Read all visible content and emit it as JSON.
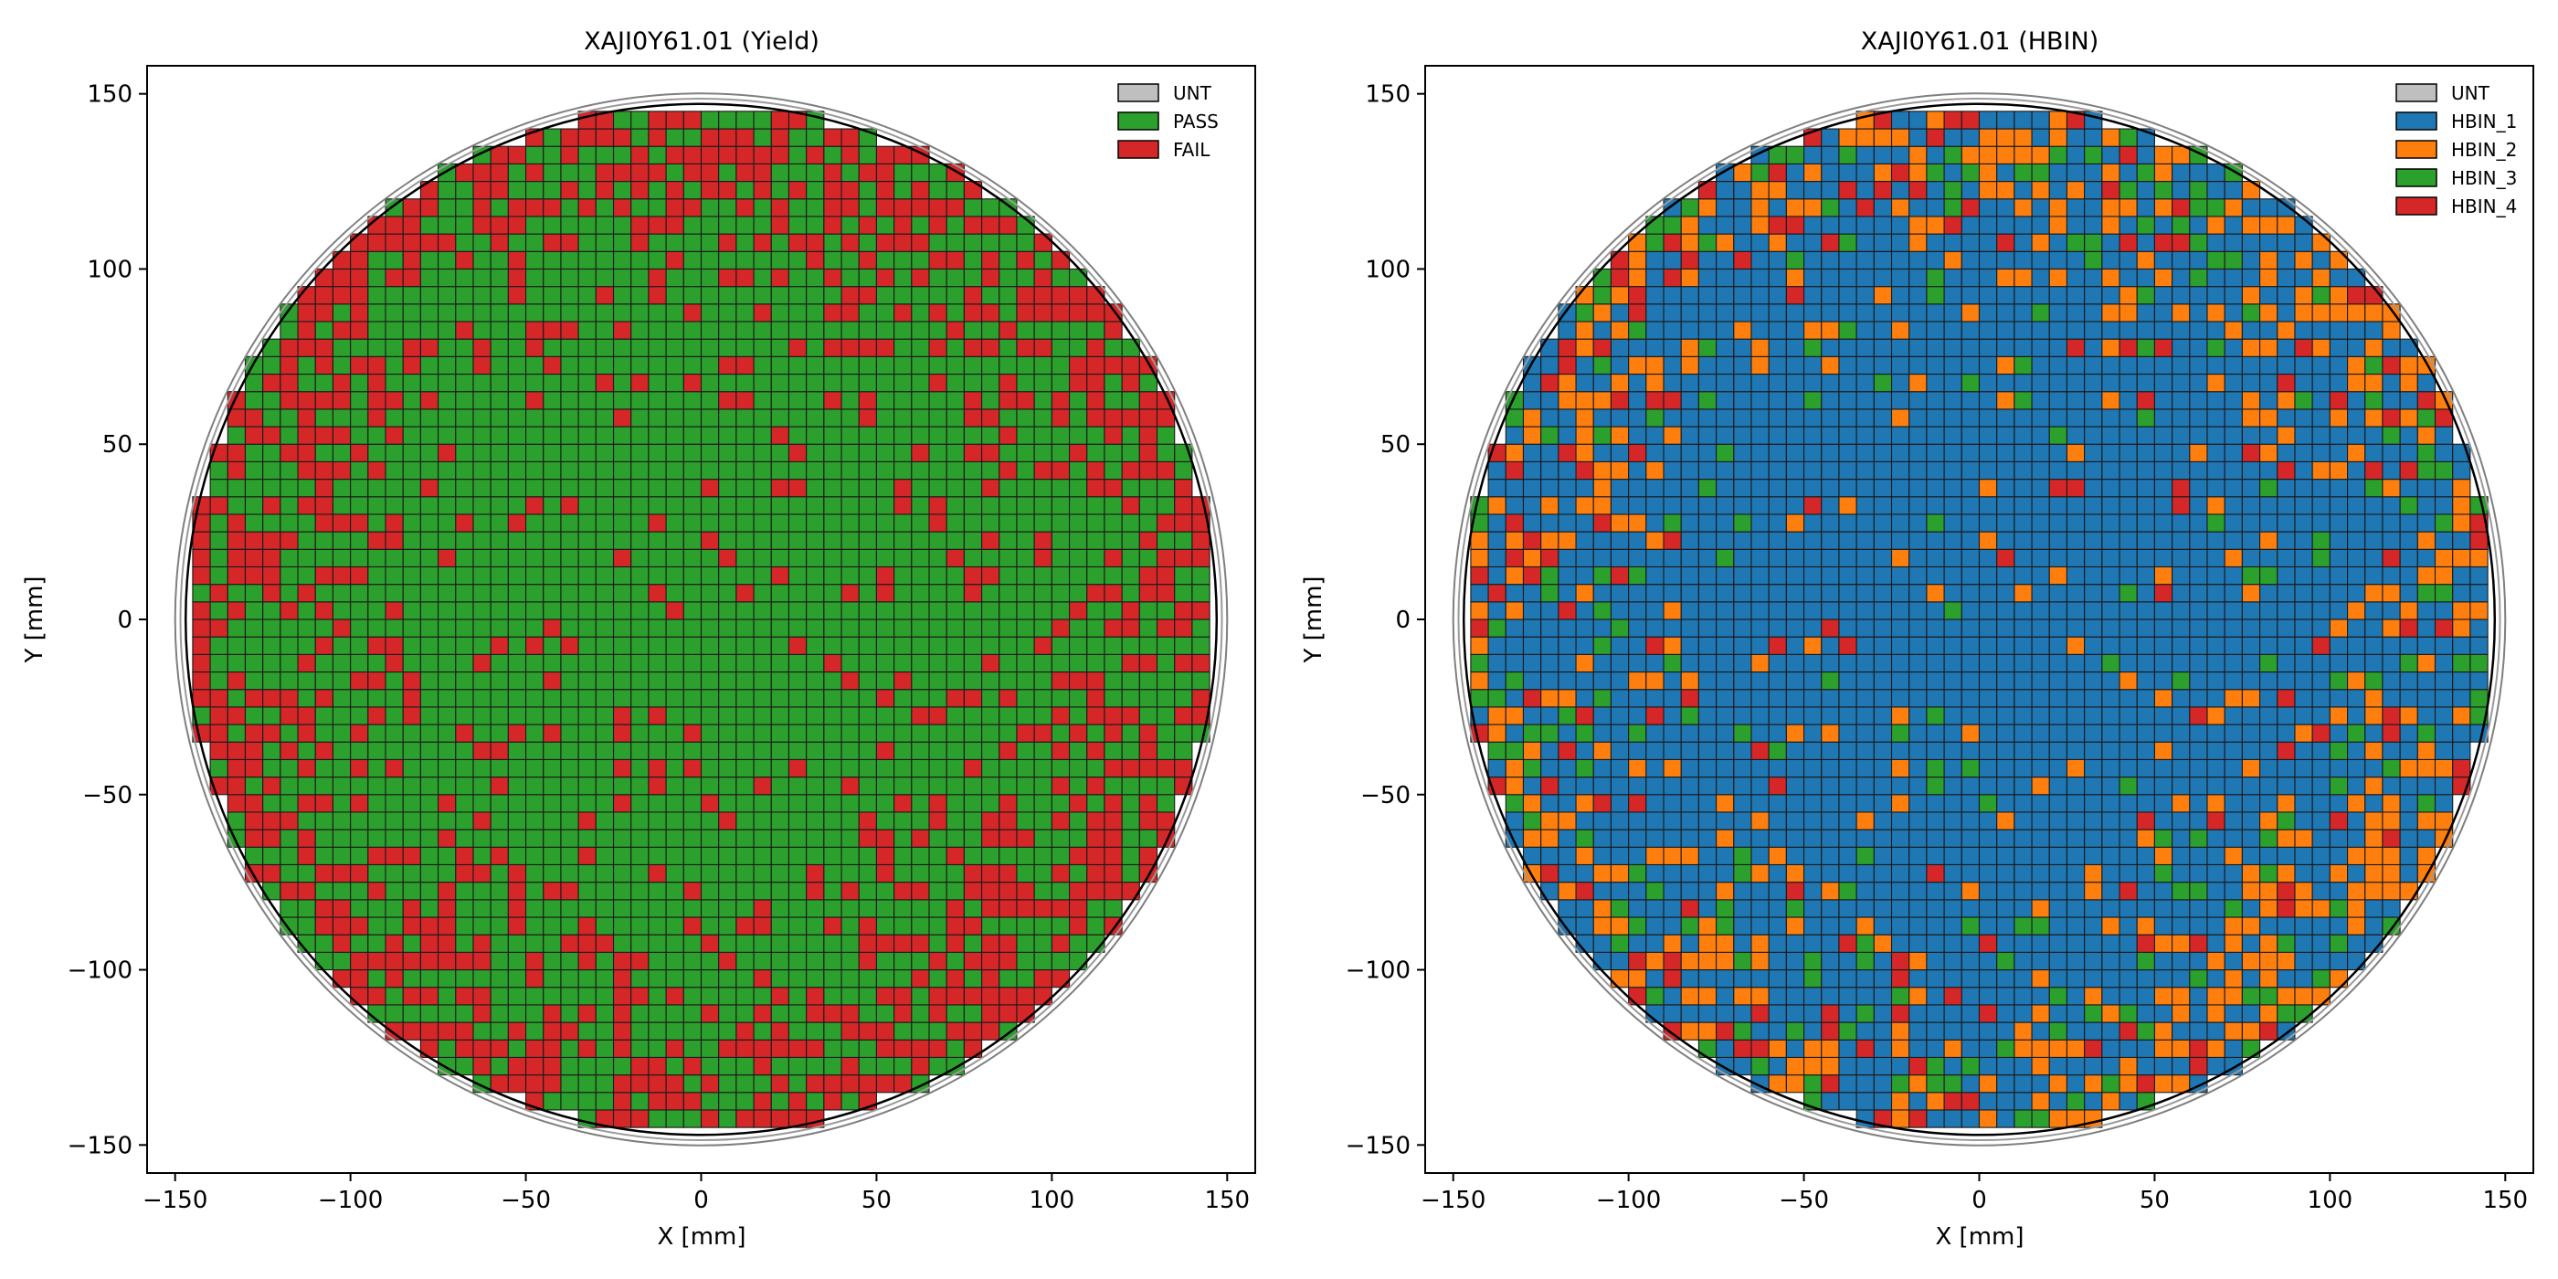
{
  "chart_data": [
    {
      "type": "heatmap",
      "title": "XAJI0Y61.01 (Yield)",
      "xlabel": "X [mm]",
      "ylabel": "Y [mm]",
      "xlim": [
        -158,
        158
      ],
      "ylim": [
        -158,
        158
      ],
      "xticks": [
        -150,
        -100,
        -50,
        0,
        50,
        100,
        150
      ],
      "yticks": [
        -150,
        -100,
        -50,
        0,
        50,
        100,
        150
      ],
      "tick_labels": [
        "−150",
        "−100",
        "−50",
        "0",
        "50",
        "100",
        "150"
      ],
      "grid": false,
      "legend_position": "top-right",
      "die_pitch_mm": 5,
      "wafer_radius_mm": 150,
      "edge_exclusion_radius_mm": 147,
      "legend": [
        {
          "label": "UNT",
          "color": "#bfbfbf"
        },
        {
          "label": "PASS",
          "color": "#2ca02c"
        },
        {
          "label": "FAIL",
          "color": "#d62728"
        }
      ],
      "bin_fractions": {
        "PASS": 0.79,
        "FAIL": 0.21
      }
    },
    {
      "type": "heatmap",
      "title": "XAJI0Y61.01 (HBIN)",
      "xlabel": "X [mm]",
      "ylabel": "Y [mm]",
      "xlim": [
        -158,
        158
      ],
      "ylim": [
        -158,
        158
      ],
      "xticks": [
        -150,
        -100,
        -50,
        0,
        50,
        100,
        150
      ],
      "yticks": [
        -150,
        -100,
        -50,
        0,
        50,
        100,
        150
      ],
      "tick_labels": [
        "−150",
        "−100",
        "−50",
        "0",
        "50",
        "100",
        "150"
      ],
      "grid": false,
      "legend_position": "top-right",
      "die_pitch_mm": 5,
      "wafer_radius_mm": 150,
      "edge_exclusion_radius_mm": 147,
      "legend": [
        {
          "label": "UNT",
          "color": "#bfbfbf"
        },
        {
          "label": "HBIN_1",
          "color": "#1f77b4"
        },
        {
          "label": "HBIN_2",
          "color": "#ff7f0e"
        },
        {
          "label": "HBIN_3",
          "color": "#2ca02c"
        },
        {
          "label": "HBIN_4",
          "color": "#d62728"
        }
      ],
      "bin_fractions": {
        "HBIN_1": 0.79,
        "HBIN_2": 0.11,
        "HBIN_3": 0.06,
        "HBIN_4": 0.04
      }
    }
  ]
}
